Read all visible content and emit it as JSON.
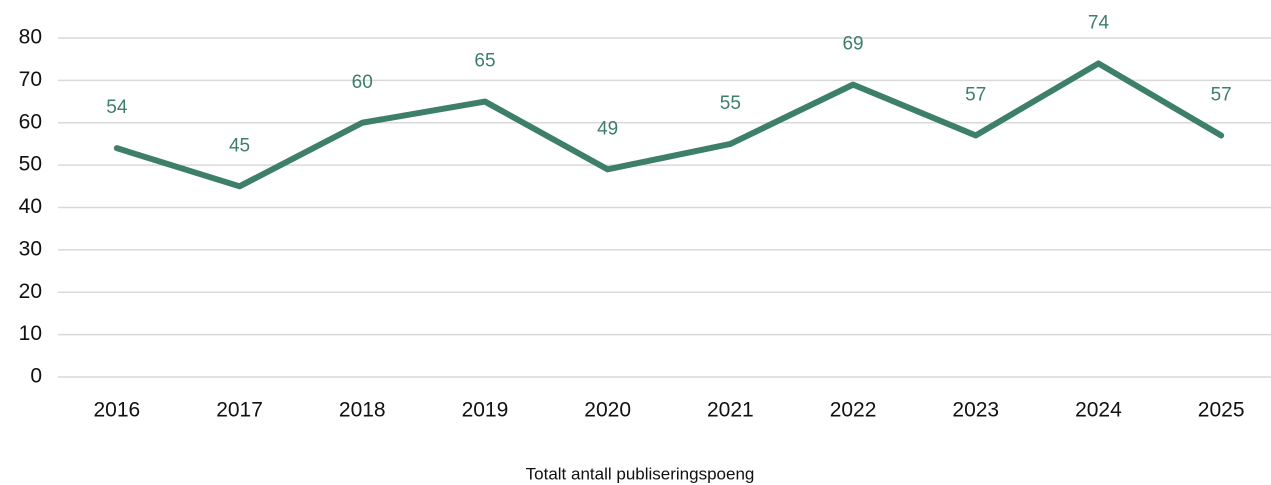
{
  "chart_data": {
    "type": "line",
    "categories": [
      "2016",
      "2017",
      "2018",
      "2019",
      "2020",
      "2021",
      "2022",
      "2023",
      "2024",
      "2025"
    ],
    "series": [
      {
        "name": "Totalt antall publiseringspoeng",
        "color": "#3d7f69",
        "values": [
          54,
          45,
          60,
          65,
          49,
          55,
          69,
          57,
          74,
          57
        ]
      }
    ],
    "ylim": [
      0,
      80
    ],
    "yticks": [
      0,
      10,
      20,
      30,
      40,
      50,
      60,
      70,
      80
    ],
    "grid": true,
    "legend": "bottom"
  }
}
